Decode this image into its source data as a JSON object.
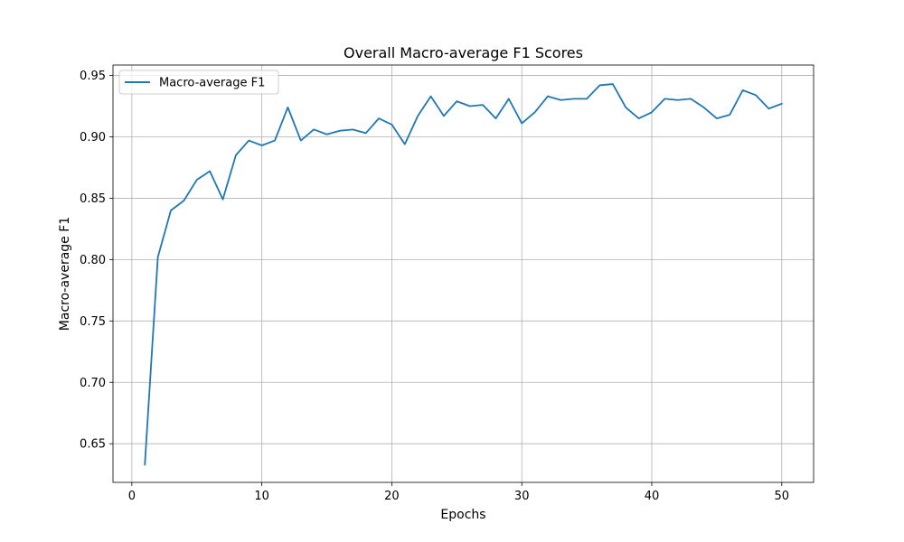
{
  "chart_data": {
    "type": "line",
    "title": "Overall Macro-average F1 Scores",
    "xlabel": "Epochs",
    "ylabel": "Macro-average F1",
    "xlim": [
      -1.45,
      52.45
    ],
    "ylim": [
      0.6185,
      0.9585
    ],
    "xticks": [
      0,
      10,
      20,
      30,
      40,
      50
    ],
    "yticks": [
      0.65,
      0.7,
      0.75,
      0.8,
      0.85,
      0.9,
      0.95
    ],
    "xtick_labels": [
      "0",
      "10",
      "20",
      "30",
      "40",
      "50"
    ],
    "ytick_labels": [
      "0.65",
      "0.70",
      "0.75",
      "0.80",
      "0.85",
      "0.90",
      "0.95"
    ],
    "grid": true,
    "legend": "upper-left",
    "colors": {
      "series": "#1f77b4",
      "grid": "#b0b0b0",
      "axes": "#000000"
    },
    "x": [
      1,
      2,
      3,
      4,
      5,
      6,
      7,
      8,
      9,
      10,
      11,
      12,
      13,
      14,
      15,
      16,
      17,
      18,
      19,
      20,
      21,
      22,
      23,
      24,
      25,
      26,
      27,
      28,
      29,
      30,
      31,
      32,
      33,
      34,
      35,
      36,
      37,
      38,
      39,
      40,
      41,
      42,
      43,
      44,
      45,
      46,
      47,
      48,
      49,
      50
    ],
    "series": [
      {
        "name": "Macro-average F1",
        "values": [
          0.633,
          0.802,
          0.84,
          0.848,
          0.865,
          0.872,
          0.849,
          0.885,
          0.897,
          0.893,
          0.897,
          0.924,
          0.897,
          0.906,
          0.902,
          0.905,
          0.906,
          0.903,
          0.915,
          0.91,
          0.894,
          0.917,
          0.933,
          0.917,
          0.929,
          0.925,
          0.926,
          0.915,
          0.931,
          0.911,
          0.92,
          0.933,
          0.93,
          0.931,
          0.931,
          0.942,
          0.943,
          0.924,
          0.915,
          0.92,
          0.931,
          0.93,
          0.931,
          0.924,
          0.915,
          0.918,
          0.938,
          0.934,
          0.923,
          0.927
        ]
      }
    ]
  }
}
